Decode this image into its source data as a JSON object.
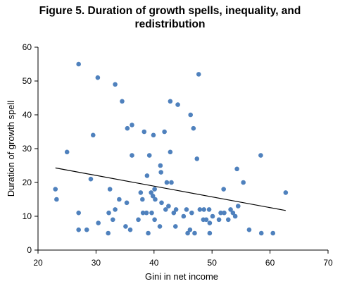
{
  "chart_data": {
    "type": "scatter",
    "title_line1": "Figure 5. Duration of growth spells, inequality, and",
    "title_line2": "redistribution",
    "xlabel": "Gini in net income",
    "ylabel": "Duration of growth spell",
    "xlim": [
      20,
      70
    ],
    "ylim": [
      0,
      60
    ],
    "xticks": [
      "20",
      "30",
      "40",
      "50",
      "60",
      "70"
    ],
    "yticks": [
      "0",
      "10",
      "20",
      "30",
      "40",
      "50",
      "60"
    ],
    "grid": false,
    "marker_color": "#4f81bd",
    "trendline": {
      "x": [
        23,
        62.7
      ],
      "y": [
        24.3,
        11.7
      ],
      "color": "#000000"
    },
    "points": [
      [
        27,
        55
      ],
      [
        30.3,
        51
      ],
      [
        33.3,
        49
      ],
      [
        47.7,
        52
      ],
      [
        34.5,
        44
      ],
      [
        42.8,
        44
      ],
      [
        44.1,
        43
      ],
      [
        46.3,
        40
      ],
      [
        29.5,
        34
      ],
      [
        35.4,
        36
      ],
      [
        36.2,
        37
      ],
      [
        38.3,
        35
      ],
      [
        39.9,
        34
      ],
      [
        41.8,
        35
      ],
      [
        46.8,
        36
      ],
      [
        25,
        29
      ],
      [
        36.2,
        28
      ],
      [
        39.2,
        28
      ],
      [
        42.8,
        29
      ],
      [
        47.4,
        27
      ],
      [
        58.4,
        28
      ],
      [
        41.1,
        25
      ],
      [
        41.2,
        23
      ],
      [
        38.8,
        22
      ],
      [
        54.3,
        24
      ],
      [
        29.1,
        21
      ],
      [
        42.2,
        20
      ],
      [
        43,
        20
      ],
      [
        55.4,
        20
      ],
      [
        23,
        18
      ],
      [
        32.4,
        18
      ],
      [
        40.1,
        18
      ],
      [
        37.7,
        17
      ],
      [
        39.5,
        17
      ],
      [
        52,
        18
      ],
      [
        62.7,
        17
      ],
      [
        23.2,
        15
      ],
      [
        34,
        15
      ],
      [
        39.8,
        16
      ],
      [
        40.2,
        15
      ],
      [
        38,
        15
      ],
      [
        27,
        11
      ],
      [
        32.2,
        11
      ],
      [
        33.3,
        12
      ],
      [
        35.3,
        14
      ],
      [
        38.7,
        11
      ],
      [
        39.6,
        11
      ],
      [
        41.3,
        14
      ],
      [
        42,
        12
      ],
      [
        42.5,
        13
      ],
      [
        43.4,
        11
      ],
      [
        43.8,
        12
      ],
      [
        45.6,
        12
      ],
      [
        46.5,
        11
      ],
      [
        47.9,
        12
      ],
      [
        48.6,
        12
      ],
      [
        49.5,
        12
      ],
      [
        50.1,
        10
      ],
      [
        51.5,
        11
      ],
      [
        52.1,
        11
      ],
      [
        53.2,
        12
      ],
      [
        53.6,
        11
      ],
      [
        54.5,
        13
      ],
      [
        30.4,
        8
      ],
      [
        32.9,
        9
      ],
      [
        35.1,
        7
      ],
      [
        37.3,
        9
      ],
      [
        38.1,
        11
      ],
      [
        40.1,
        9
      ],
      [
        43.7,
        7
      ],
      [
        45.1,
        10
      ],
      [
        48.5,
        9
      ],
      [
        49,
        9
      ],
      [
        49.6,
        8
      ],
      [
        51.2,
        9
      ],
      [
        52.8,
        9
      ],
      [
        54,
        10
      ],
      [
        27,
        6
      ],
      [
        28.4,
        6
      ],
      [
        32.1,
        5
      ],
      [
        35.9,
        6
      ],
      [
        39,
        5
      ],
      [
        41,
        7
      ],
      [
        45.8,
        5
      ],
      [
        46.2,
        6
      ],
      [
        47,
        5
      ],
      [
        49.6,
        5
      ],
      [
        56.4,
        6
      ],
      [
        58.5,
        5
      ],
      [
        60.5,
        5
      ]
    ]
  }
}
